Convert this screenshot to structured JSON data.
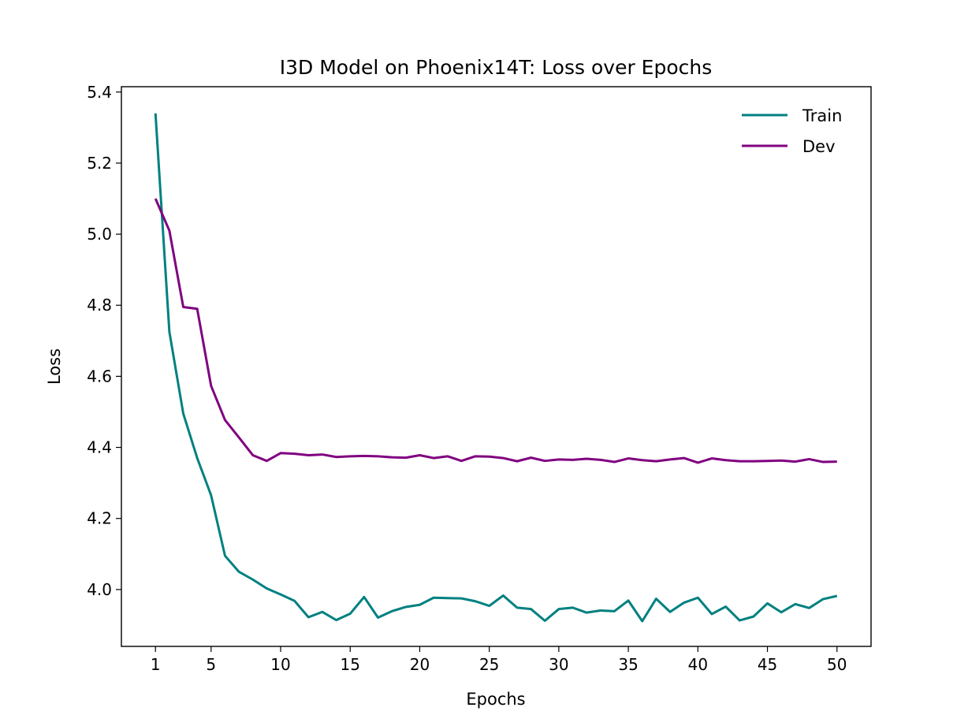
{
  "chart_data": {
    "type": "line",
    "title": "I3D Model on Phoenix14T: Loss over Epochs",
    "xlabel": "Epochs",
    "ylabel": "Loss",
    "xlim": [
      -1.45,
      52.45
    ],
    "ylim": [
      3.84,
      5.415
    ],
    "xticks": [
      1,
      5,
      10,
      15,
      20,
      25,
      30,
      35,
      40,
      45,
      50
    ],
    "yticks": [
      4.0,
      4.2,
      4.4,
      4.6,
      4.8,
      5.0,
      5.2,
      5.4
    ],
    "ytick_labels": [
      "4.0",
      "4.2",
      "4.4",
      "4.6",
      "4.8",
      "5.0",
      "5.2",
      "5.4"
    ],
    "grid": false,
    "legend_position": "top-right",
    "x": [
      1,
      2,
      3,
      4,
      5,
      6,
      7,
      8,
      9,
      10,
      11,
      12,
      13,
      14,
      15,
      16,
      17,
      18,
      19,
      20,
      21,
      22,
      23,
      24,
      25,
      26,
      27,
      28,
      29,
      30,
      31,
      32,
      33,
      34,
      35,
      36,
      37,
      38,
      39,
      40,
      41,
      42,
      43,
      44,
      45,
      46,
      47,
      48,
      49,
      50
    ],
    "series": [
      {
        "name": "Train",
        "color": "#008080",
        "values": [
          5.34,
          4.725,
          4.495,
          4.37,
          4.265,
          4.095,
          4.05,
          4.028,
          4.003,
          3.986,
          3.968,
          3.922,
          3.937,
          3.914,
          3.932,
          3.979,
          3.921,
          3.939,
          3.951,
          3.957,
          3.977,
          3.976,
          3.975,
          3.967,
          3.954,
          3.983,
          3.949,
          3.945,
          3.912,
          3.945,
          3.949,
          3.935,
          3.941,
          3.939,
          3.969,
          3.911,
          3.974,
          3.937,
          3.963,
          3.977,
          3.931,
          3.952,
          3.913,
          3.924,
          3.961,
          3.936,
          3.959,
          3.948,
          3.973,
          3.982
        ]
      },
      {
        "name": "Dev",
        "color": "#800080",
        "values": [
          5.1,
          5.01,
          4.795,
          4.79,
          4.573,
          4.477,
          4.428,
          4.378,
          4.362,
          4.384,
          4.382,
          4.378,
          4.38,
          4.373,
          4.375,
          4.376,
          4.375,
          4.372,
          4.371,
          4.378,
          4.37,
          4.375,
          4.362,
          4.375,
          4.374,
          4.37,
          4.361,
          4.371,
          4.362,
          4.366,
          4.365,
          4.368,
          4.365,
          4.359,
          4.369,
          4.364,
          4.361,
          4.366,
          4.37,
          4.357,
          4.369,
          4.364,
          4.361,
          4.361,
          4.362,
          4.363,
          4.36,
          4.367,
          4.359,
          4.36
        ]
      }
    ]
  }
}
